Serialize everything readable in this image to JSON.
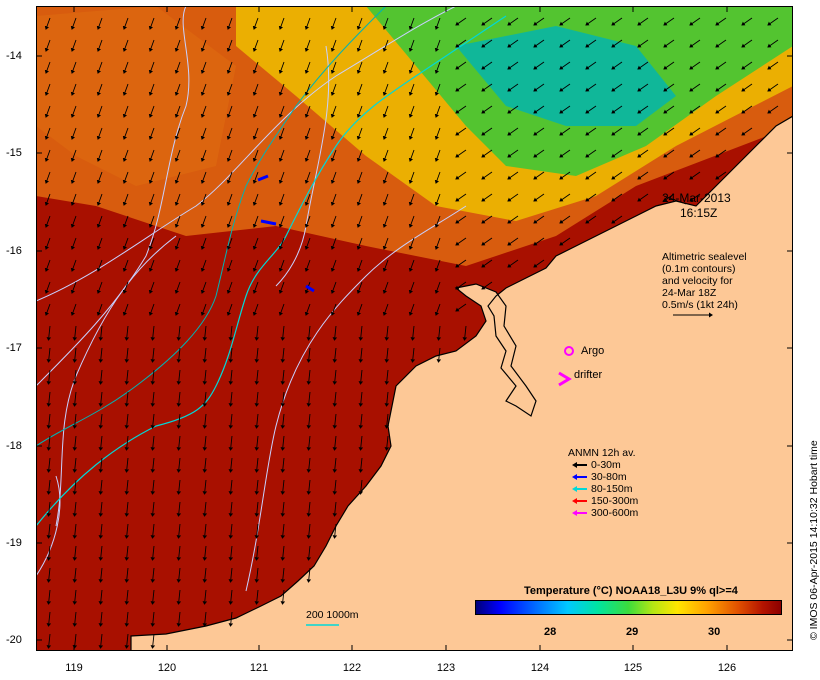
{
  "map": {
    "y_axis_labels": [
      "-14",
      "-15",
      "-16",
      "-17",
      "-18",
      "-19",
      "-20"
    ],
    "x_axis_labels": [
      "119",
      "120",
      "121",
      "122",
      "123",
      "124",
      "125",
      "126"
    ],
    "timestamp_date": "24-Mar-2013",
    "timestamp_time": "16:15Z",
    "altimetry_note": [
      "Altimetric sealevel",
      "(0.1m contours)",
      "and velocity for",
      "24-Mar 18Z",
      "0.5m/s (1kt 24h)"
    ],
    "argo_label": "Argo",
    "drifter_label": "drifter",
    "anmn_title": "ANMN 12h av.",
    "anmn_legend": [
      {
        "label": "0-30m",
        "color": "#000000"
      },
      {
        "label": "30-80m",
        "color": "#0000ff"
      },
      {
        "label": "80-150m",
        "color": "#00d8d8"
      },
      {
        "label": "150-300m",
        "color": "#ff0000"
      },
      {
        "label": "300-600m",
        "color": "#ff00ff"
      }
    ],
    "depth_contours_label": "200  1000m",
    "colorbar_title": "Temperature (°C) NOAA18_L3U 9% ql>=4",
    "colorbar_ticks": [
      "28",
      "29",
      "30"
    ],
    "credit": "© IMOS 06-Apr-2015 14:10:32 Hobart time",
    "colors": {
      "land": "#fdc896",
      "warm_sea": "#a81000",
      "mid_sea": "#e06a10",
      "cool_sea": "#f0c400",
      "green_sea": "#38c838",
      "cyan_sea": "#00b4b4",
      "contour": "#c8d0ff",
      "depth_200": "#00d8d8"
    }
  }
}
